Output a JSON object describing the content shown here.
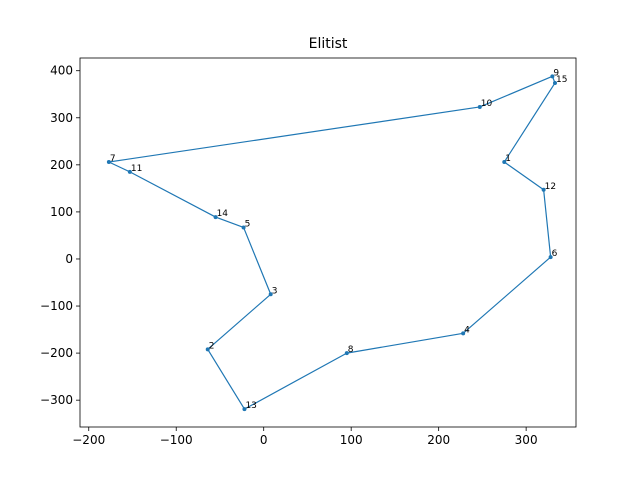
{
  "chart_data": {
    "type": "line",
    "title": "Elitist",
    "xlabel": "",
    "ylabel": "",
    "xlim": [
      -210,
      357
    ],
    "ylim": [
      -357,
      427
    ],
    "xticks": [
      -200,
      -100,
      0,
      100,
      200,
      300
    ],
    "yticks": [
      -300,
      -200,
      -100,
      0,
      100,
      200,
      300,
      400
    ],
    "xtick_labels": [
      "−200",
      "−100",
      "0",
      "100",
      "200",
      "300"
    ],
    "ytick_labels": [
      "−300",
      "−200",
      "−100",
      "0",
      "100",
      "200",
      "300",
      "400"
    ],
    "color": "#1f77b4",
    "grid": false,
    "path": [
      {
        "label": "9",
        "x": 330,
        "y": 388
      },
      {
        "label": "15",
        "x": 333,
        "y": 374
      },
      {
        "label": "1",
        "x": 275,
        "y": 206
      },
      {
        "label": "12",
        "x": 320,
        "y": 147
      },
      {
        "label": "6",
        "x": 328,
        "y": 4
      },
      {
        "label": "4",
        "x": 228,
        "y": -158
      },
      {
        "label": "8",
        "x": 95,
        "y": -200
      },
      {
        "label": "13",
        "x": -22,
        "y": -319
      },
      {
        "label": "2",
        "x": -64,
        "y": -192
      },
      {
        "label": "3",
        "x": 8,
        "y": -75
      },
      {
        "label": "5",
        "x": -23,
        "y": 67
      },
      {
        "label": "14",
        "x": -55,
        "y": 89
      },
      {
        "label": "11",
        "x": -153,
        "y": 185
      },
      {
        "label": "7",
        "x": -177,
        "y": 206
      },
      {
        "label": "10",
        "x": 247,
        "y": 323
      },
      {
        "label": "9",
        "x": 330,
        "y": 388
      }
    ]
  }
}
